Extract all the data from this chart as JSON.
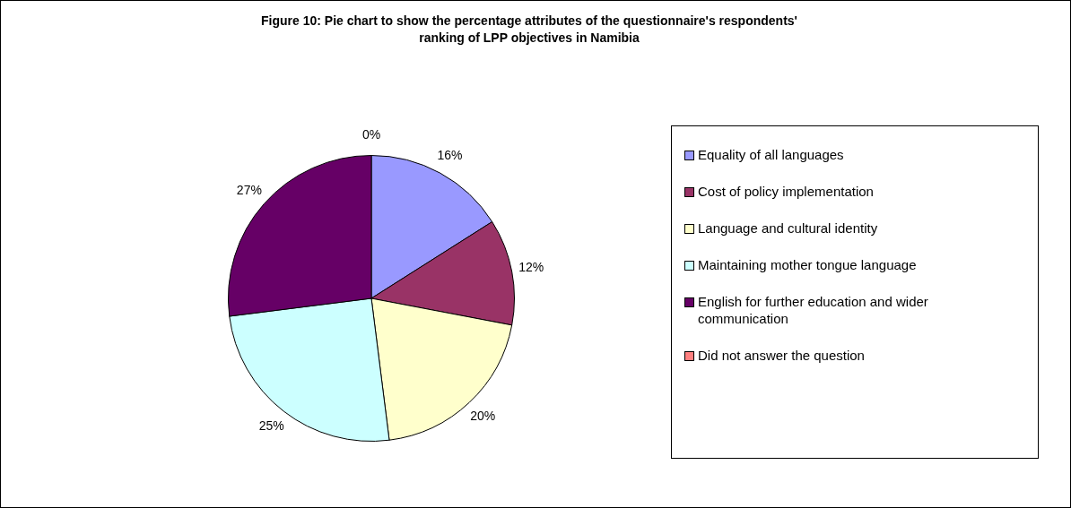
{
  "chart_data": {
    "type": "pie",
    "title": "Figure 10: Pie chart to show the percentage attributes of the questionnaire's respondents' ranking of LPP objectives in Namibia",
    "categories": [
      "Equality of all languages",
      "Cost of policy implementation",
      "Language and cultural identity",
      "Maintaining mother tongue language",
      "English for further education and wider communication",
      "Did not answer the question"
    ],
    "values": [
      16,
      12,
      20,
      25,
      27,
      0
    ],
    "colors": [
      "#9999ff",
      "#993366",
      "#ffffcc",
      "#ccffff",
      "#660066",
      "#ff8080"
    ],
    "value_labels": [
      "16%",
      "12%",
      "20%",
      "25%",
      "27%",
      "0%"
    ],
    "legend": "right"
  }
}
